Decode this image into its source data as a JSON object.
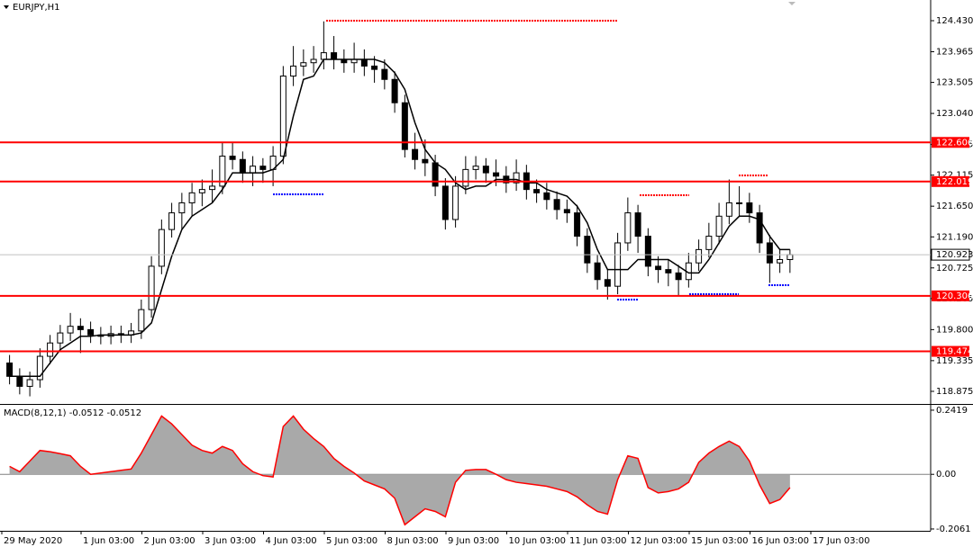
{
  "chart_data": [
    {
      "type": "candlestick",
      "title": "EURJPY,H1",
      "open": [
        119.3,
        119.1,
        118.95,
        119.05,
        119.4,
        119.6,
        119.75,
        119.85,
        119.8,
        119.72,
        119.7,
        119.74,
        119.72,
        119.78,
        120.1,
        120.75,
        121.3,
        121.55,
        121.7,
        121.85,
        121.9,
        121.95,
        122.4,
        122.35,
        122.15,
        122.25,
        122.2,
        122.4,
        123.6,
        123.75,
        123.8,
        123.85,
        123.95,
        123.85,
        123.8,
        123.85,
        123.75,
        123.7,
        123.55,
        123.2,
        122.5,
        122.35,
        122.3,
        121.95,
        121.45,
        121.95,
        122.2,
        122.25,
        122.15,
        122.1,
        122.0,
        122.15,
        121.9,
        121.85,
        121.75,
        121.6,
        121.55,
        121.2,
        120.8,
        120.55,
        120.45,
        121.1,
        121.55,
        121.2,
        120.75,
        120.7,
        120.65,
        120.55,
        120.8,
        121.0,
        121.2,
        121.5,
        121.7,
        121.7,
        121.55,
        121.1,
        120.8,
        120.85
      ],
      "high": [
        119.42,
        119.22,
        119.17,
        119.52,
        119.72,
        119.87,
        120.05,
        119.97,
        119.92,
        119.84,
        119.86,
        119.86,
        119.9,
        120.25,
        120.9,
        121.45,
        121.7,
        121.85,
        122.0,
        122.05,
        122.2,
        122.6,
        122.6,
        122.47,
        122.4,
        122.37,
        122.55,
        123.75,
        124.05,
        124.0,
        124.05,
        124.42,
        124.2,
        124.0,
        124.1,
        124.0,
        123.9,
        123.85,
        123.67,
        123.32,
        122.75,
        122.65,
        122.42,
        122.07,
        122.1,
        122.4,
        122.4,
        122.37,
        122.35,
        122.25,
        122.35,
        122.27,
        122.05,
        122.0,
        121.87,
        121.75,
        121.67,
        121.32,
        120.92,
        120.7,
        121.25,
        121.78,
        121.67,
        121.32,
        120.9,
        120.85,
        120.77,
        120.95,
        121.15,
        121.4,
        121.7,
        122.05,
        121.95,
        121.85,
        121.67,
        121.22,
        121.0,
        121.0
      ],
      "low": [
        118.98,
        118.83,
        118.8,
        118.93,
        119.28,
        119.48,
        119.63,
        119.45,
        119.6,
        119.58,
        119.58,
        119.6,
        119.6,
        119.66,
        119.98,
        120.63,
        121.18,
        121.3,
        121.5,
        121.65,
        121.7,
        121.83,
        122.2,
        122.0,
        121.95,
        122.0,
        121.95,
        122.28,
        123.45,
        123.6,
        123.65,
        123.7,
        123.7,
        123.65,
        123.65,
        123.6,
        123.5,
        123.4,
        123.05,
        122.38,
        122.2,
        122.1,
        121.8,
        121.3,
        121.33,
        121.83,
        122.05,
        122.0,
        121.95,
        121.85,
        121.88,
        121.75,
        121.7,
        121.6,
        121.45,
        121.4,
        121.05,
        120.65,
        120.4,
        120.25,
        120.33,
        120.98,
        120.95,
        120.6,
        120.5,
        120.45,
        120.3,
        120.43,
        120.68,
        120.88,
        121.08,
        121.38,
        121.5,
        121.4,
        120.95,
        120.5,
        120.65,
        120.65
      ],
      "close": [
        119.1,
        118.95,
        119.05,
        119.4,
        119.6,
        119.75,
        119.85,
        119.8,
        119.72,
        119.7,
        119.74,
        119.72,
        119.78,
        120.1,
        120.75,
        121.3,
        121.55,
        121.7,
        121.85,
        121.9,
        121.95,
        122.4,
        122.35,
        122.15,
        122.25,
        122.2,
        122.4,
        123.6,
        123.75,
        123.8,
        123.85,
        123.95,
        123.85,
        123.8,
        123.85,
        123.75,
        123.7,
        123.55,
        123.2,
        122.5,
        122.35,
        122.3,
        121.95,
        121.45,
        121.95,
        122.2,
        122.25,
        122.15,
        122.1,
        122.0,
        122.15,
        121.9,
        121.85,
        121.75,
        121.6,
        121.55,
        121.2,
        120.8,
        120.55,
        120.45,
        121.1,
        121.55,
        121.2,
        120.75,
        120.7,
        120.65,
        120.55,
        120.8,
        121.0,
        121.2,
        121.5,
        121.7,
        121.7,
        121.55,
        121.1,
        120.8,
        120.85,
        120.923
      ],
      "line": {
        "color": "#000000",
        "values": [
          119.1,
          119.1,
          119.1,
          119.1,
          119.3,
          119.5,
          119.6,
          119.7,
          119.7,
          119.72,
          119.72,
          119.72,
          119.72,
          119.75,
          119.9,
          120.4,
          120.9,
          121.3,
          121.5,
          121.6,
          121.7,
          121.9,
          122.15,
          122.15,
          122.15,
          122.15,
          122.2,
          122.35,
          123.0,
          123.55,
          123.6,
          123.85,
          123.85,
          123.85,
          123.85,
          123.85,
          123.85,
          123.8,
          123.65,
          123.4,
          122.9,
          122.5,
          122.3,
          122.2,
          122.0,
          121.9,
          121.95,
          121.95,
          122.05,
          122.05,
          122.05,
          122.0,
          122.0,
          121.9,
          121.85,
          121.8,
          121.65,
          121.4,
          121.0,
          120.7,
          120.7,
          120.7,
          120.85,
          120.85,
          120.85,
          120.85,
          120.75,
          120.65,
          120.65,
          120.85,
          121.1,
          121.35,
          121.5,
          121.5,
          121.45,
          121.2,
          121.0,
          121.0
        ]
      },
      "ylim": [
        118.686,
        124.74
      ],
      "yticks": [
        {
          "value": 124.43,
          "label": "124.430"
        },
        123.965,
        123.505,
        {
          "value": 123.04,
          "label": "123.040"
        },
        122.575,
        122.115,
        {
          "value": 121.65,
          "label": "121.650"
        },
        {
          "value": 121.19,
          "label": "121.190"
        },
        120.725,
        120.265,
        {
          "value": 119.8,
          "label": "119.800"
        },
        119.335,
        118.875
      ],
      "levels": [
        122.606,
        122.019,
        120.306,
        119.474
      ],
      "level_color": "#ff0000",
      "current_price": 120.923,
      "x_labels": [
        "29 May 2020",
        "1 Jun 03:00",
        "2 Jun 03:00",
        "3 Jun 03:00",
        "4 Jun 03:00",
        "5 Jun 03:00",
        "8 Jun 03:00",
        "9 Jun 03:00",
        "10 Jun 03:00",
        "11 Jun 03:00",
        "12 Jun 03:00",
        "15 Jun 03:00",
        "16 Jun 03:00",
        "17 Jun 03:00"
      ]
    },
    {
      "type": "area",
      "title": "MACD(8,12,1) -0.0512 -0.0512",
      "values": [
        0.03,
        0.01,
        0.05,
        0.09,
        0.085,
        0.078,
        0.07,
        0.03,
        0.0,
        0.005,
        0.01,
        0.015,
        0.02,
        0.08,
        0.15,
        0.22,
        0.19,
        0.15,
        0.11,
        0.09,
        0.08,
        0.105,
        0.09,
        0.04,
        0.01,
        -0.005,
        -0.01,
        0.18,
        0.22,
        0.17,
        0.135,
        0.105,
        0.06,
        0.03,
        0.005,
        -0.025,
        -0.04,
        -0.055,
        -0.09,
        -0.19,
        -0.16,
        -0.13,
        -0.14,
        -0.16,
        -0.03,
        0.015,
        0.018,
        0.018,
        0.0,
        -0.02,
        -0.03,
        -0.035,
        -0.04,
        -0.045,
        -0.055,
        -0.065,
        -0.085,
        -0.115,
        -0.14,
        -0.15,
        -0.02,
        0.07,
        0.06,
        -0.05,
        -0.07,
        -0.065,
        -0.055,
        -0.03,
        0.045,
        0.08,
        0.105,
        0.125,
        0.105,
        0.05,
        -0.04,
        -0.11,
        -0.095,
        -0.05
      ],
      "color": "#ff0000",
      "fill": "#a9a9a9",
      "ylim": [
        -0.213,
        0.262
      ],
      "yticks": [
        0.2419,
        {
          "value": 0,
          "label": "0.00"
        },
        -0.2061
      ]
    }
  ]
}
